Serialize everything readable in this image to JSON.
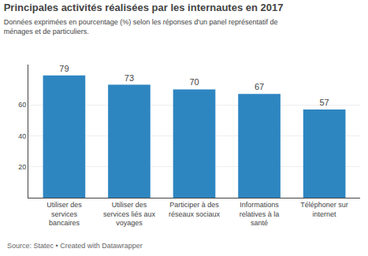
{
  "chart_data": {
    "type": "bar",
    "title": "Principales activités réalisées par les internautes en 2017",
    "subtitle": "Données exprimées en pourcentage (%) selon les réponses d'un panel représentatif de ménages et de particuliers.",
    "annotations": [
      "Source: Statec • Created with Datawrapper"
    ],
    "categories": [
      "Utiliser des\nservices\nbancaires",
      "Utiliser des\nservices liés aux\nvoyages",
      "Participer à des\nréseaux sociaux",
      "Informations\nrelatives à la\nsanté",
      "Téléphoner sur\ninternet"
    ],
    "values": [
      79,
      73,
      70,
      67,
      57
    ],
    "color": "#2e86c1",
    "ylim": [
      0,
      86
    ],
    "yticks": [
      20,
      40,
      60
    ],
    "grid": true,
    "data_labels": true
  }
}
